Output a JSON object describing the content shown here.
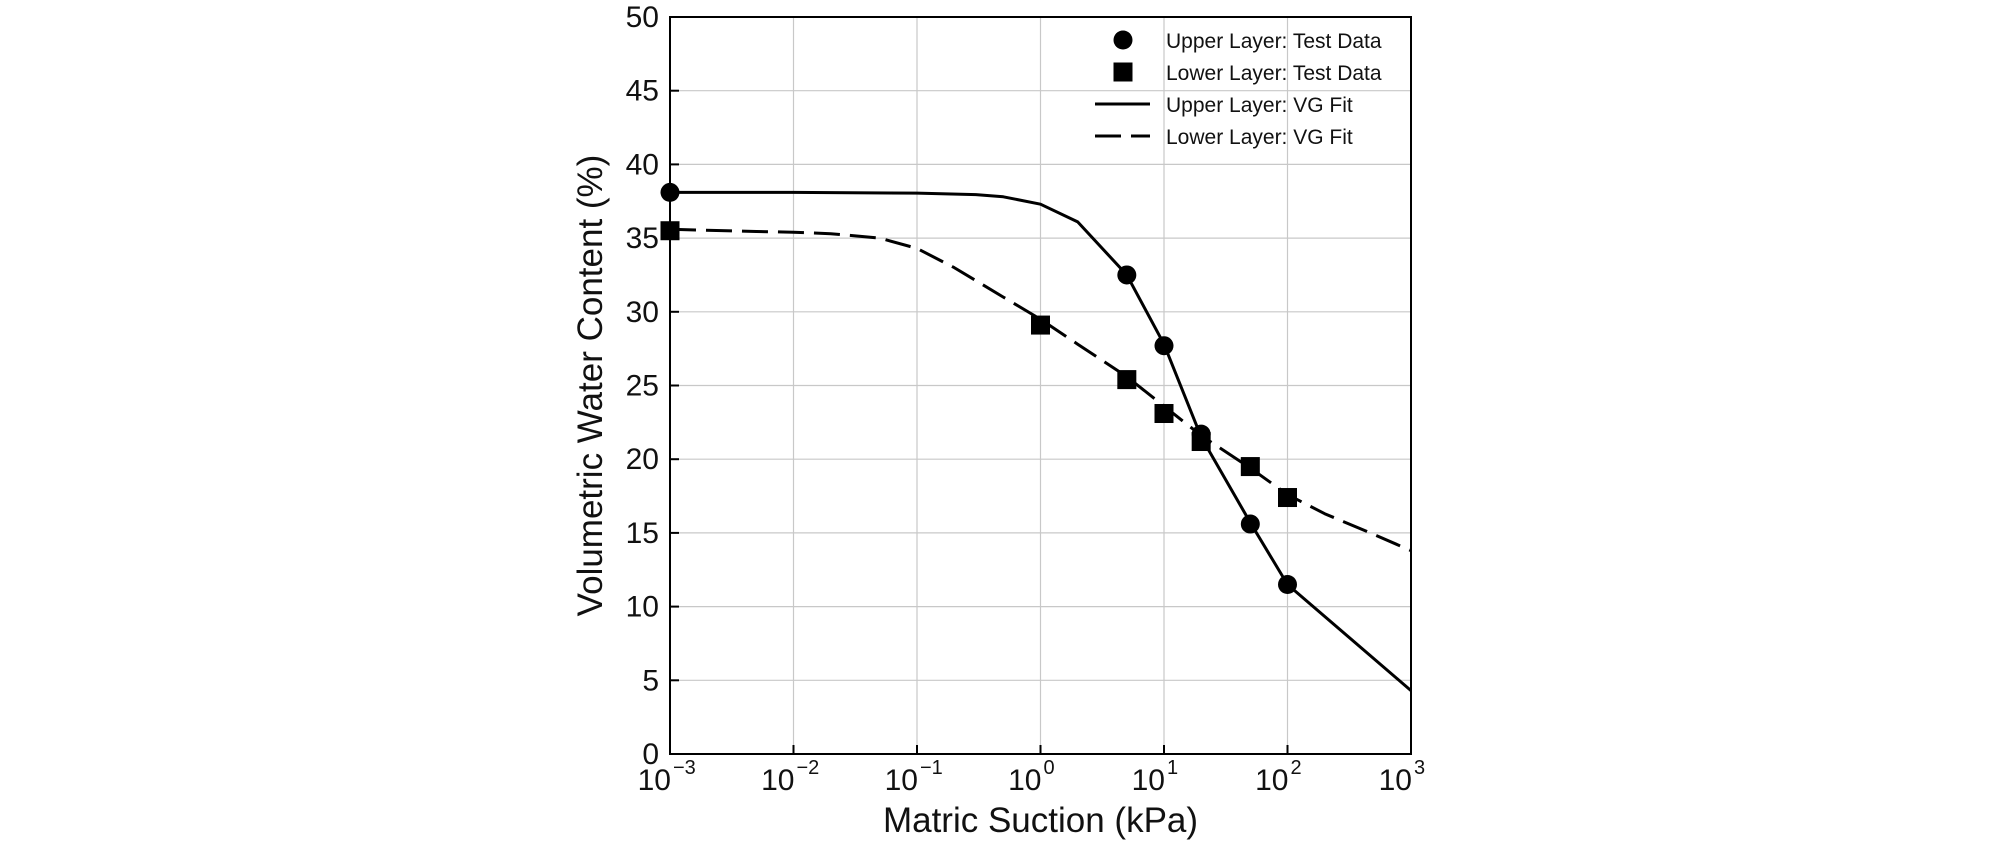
{
  "chart_data": {
    "type": "scatter",
    "title": "",
    "xlabel": "Matric Suction (kPa)",
    "ylabel": "Volumetric Water Content (%)",
    "xscale": "log",
    "xlim": [
      0.001,
      1000
    ],
    "ylim": [
      0,
      50
    ],
    "grid": true,
    "legend_position": "top-right",
    "x_ticks": [
      {
        "base": "10",
        "exp": "−3"
      },
      {
        "base": "10",
        "exp": "−2"
      },
      {
        "base": "10",
        "exp": "−1"
      },
      {
        "base": "10",
        "exp": "0"
      },
      {
        "base": "10",
        "exp": "1"
      },
      {
        "base": "10",
        "exp": "2"
      },
      {
        "base": "10",
        "exp": "3"
      }
    ],
    "y_ticks": [
      "0",
      "5",
      "10",
      "15",
      "20",
      "25",
      "30",
      "35",
      "40",
      "45",
      "50"
    ],
    "series": [
      {
        "name": "Upper Layer: Test Data",
        "kind": "points",
        "marker": "circle",
        "x": [
          0.001,
          5,
          10,
          20,
          50,
          100
        ],
        "y": [
          38.1,
          32.5,
          27.7,
          21.7,
          15.6,
          11.5
        ]
      },
      {
        "name": "Lower Layer: Test Data",
        "kind": "points",
        "marker": "square",
        "x": [
          0.001,
          1,
          5,
          10,
          20,
          50,
          100
        ],
        "y": [
          35.5,
          29.1,
          25.4,
          23.1,
          21.2,
          19.5,
          17.4
        ]
      },
      {
        "name": "Upper Layer: VG Fit",
        "kind": "line",
        "style": "solid",
        "x": [
          0.001,
          0.01,
          0.1,
          0.3,
          0.5,
          1,
          2,
          5,
          10,
          20,
          50,
          100,
          1000
        ],
        "y": [
          38.1,
          38.1,
          38.05,
          37.95,
          37.8,
          37.3,
          36.1,
          32.5,
          27.8,
          21.5,
          15.7,
          11.5,
          4.3
        ]
      },
      {
        "name": "Lower Layer: VG Fit",
        "kind": "line",
        "style": "dashdot",
        "x": [
          0.001,
          0.005,
          0.01,
          0.02,
          0.05,
          0.1,
          0.2,
          0.5,
          1,
          2,
          5,
          10,
          20,
          50,
          100,
          200,
          500,
          1000
        ],
        "y": [
          35.6,
          35.45,
          35.4,
          35.3,
          35.0,
          34.3,
          33.0,
          31.0,
          29.5,
          27.8,
          25.6,
          23.6,
          21.6,
          19.4,
          17.6,
          16.3,
          14.9,
          13.8
        ]
      }
    ]
  }
}
